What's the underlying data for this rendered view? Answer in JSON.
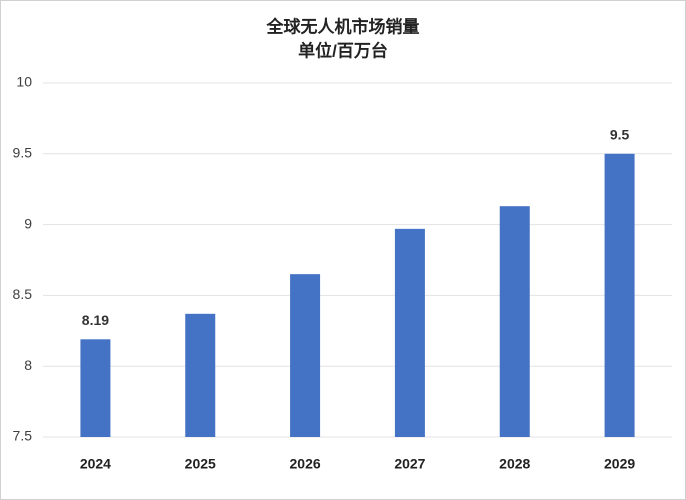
{
  "chart_data": {
    "type": "bar",
    "title": "全球无人机市场销量",
    "subtitle": "单位/百万台",
    "categories": [
      "2024",
      "2025",
      "2026",
      "2027",
      "2028",
      "2029"
    ],
    "values": [
      8.19,
      8.37,
      8.65,
      8.97,
      9.13,
      9.5
    ],
    "value_labels": [
      "8.19",
      null,
      null,
      null,
      null,
      "9.5"
    ],
    "color": "#4472c4",
    "ylim": [
      7.5,
      10
    ],
    "yticks": [
      7.5,
      8,
      8.5,
      9,
      9.5,
      10
    ],
    "grid": true
  }
}
